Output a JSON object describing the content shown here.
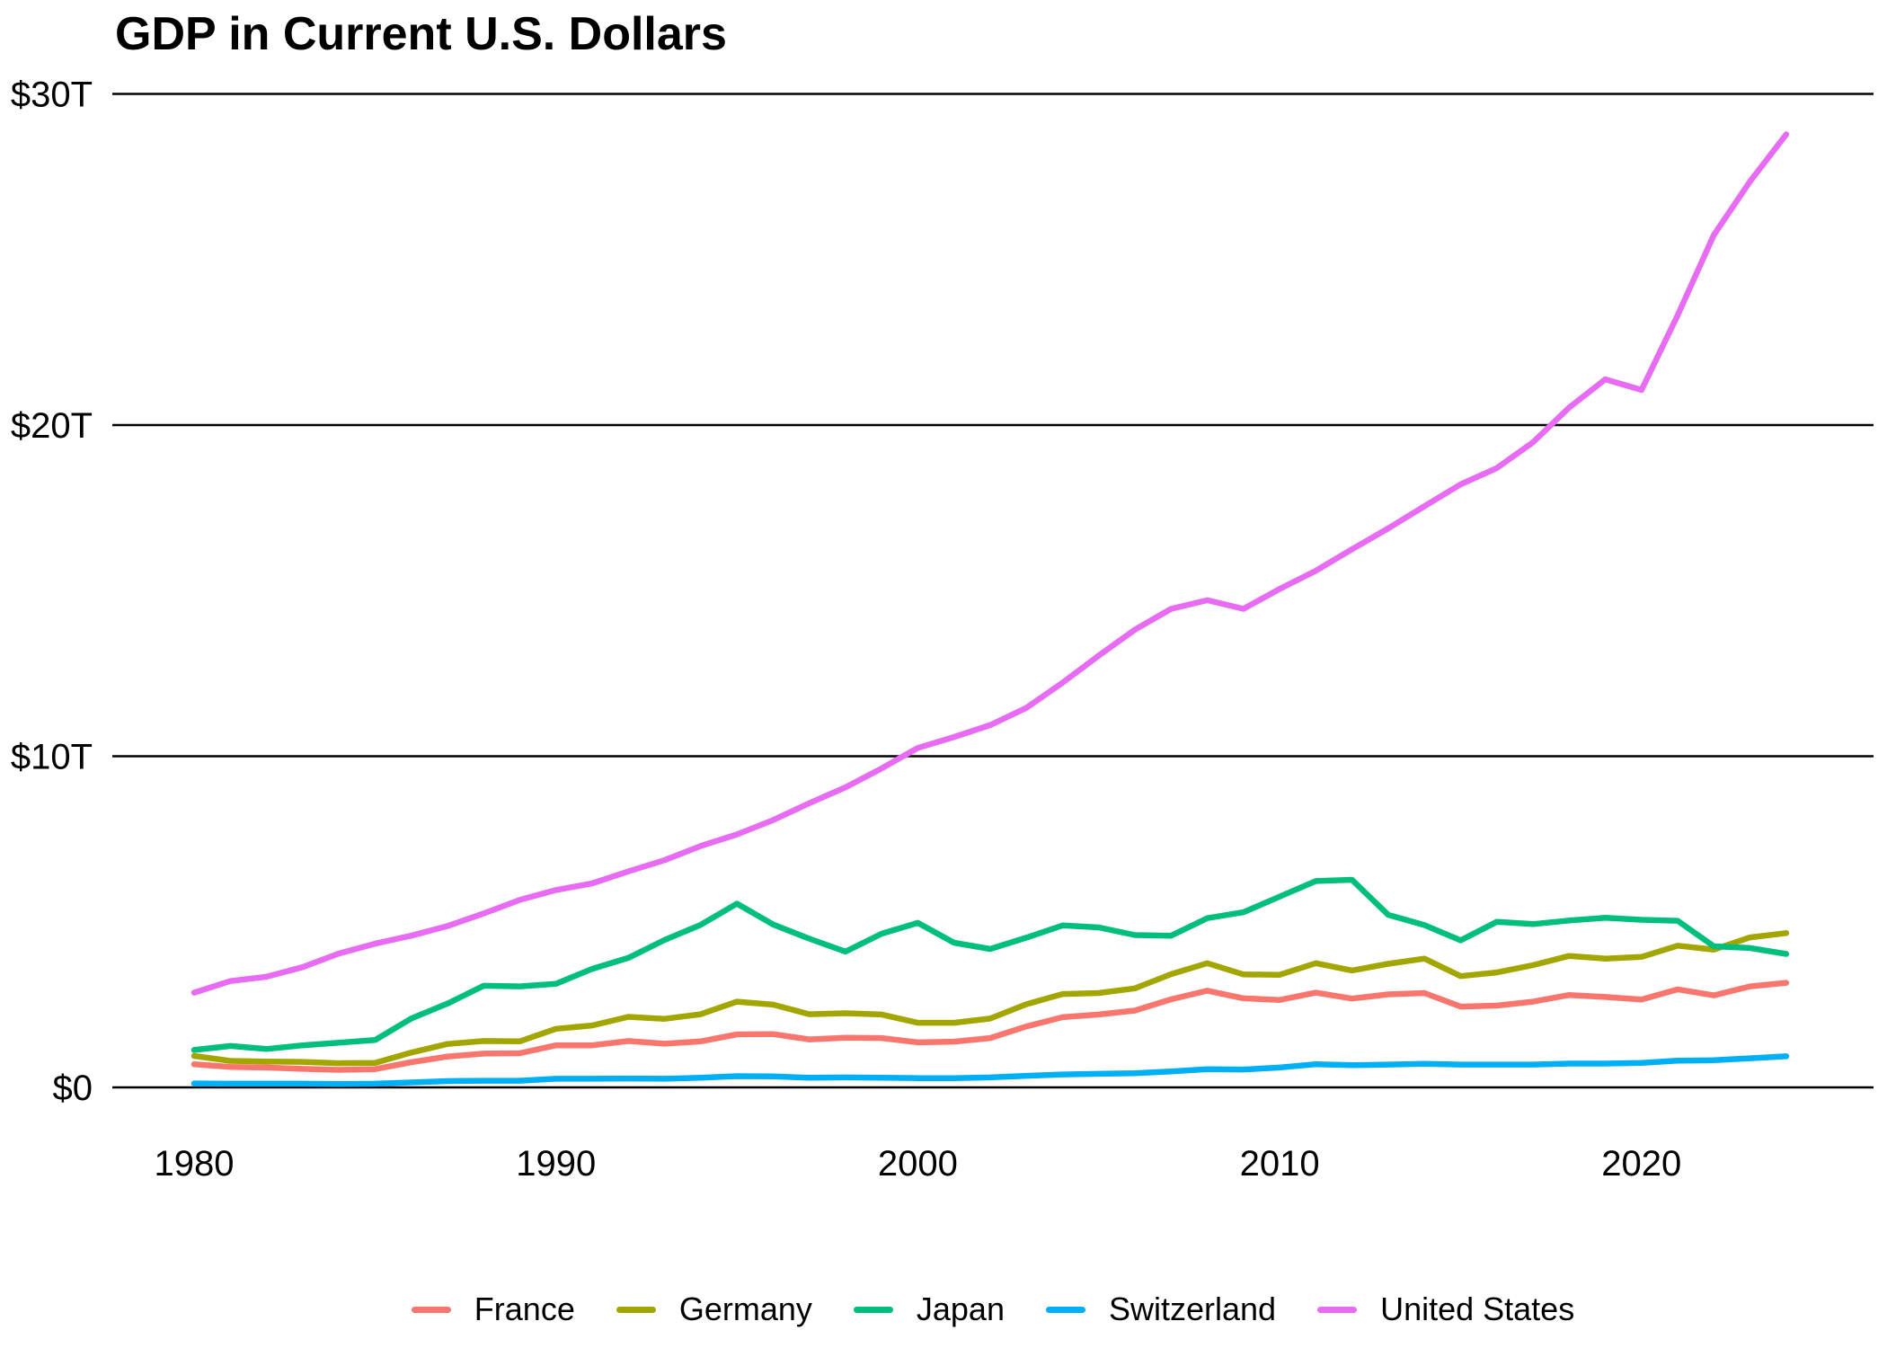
{
  "page": {
    "background_color": "#ffffff",
    "text_color": "#000000",
    "gridline_color": "#000000"
  },
  "chart_data": {
    "type": "line",
    "title": "GDP in Current U.S. Dollars",
    "xlabel": "",
    "ylabel": "",
    "grid": "horizontal",
    "legend_position": "bottom",
    "x": [
      1980,
      1981,
      1982,
      1983,
      1984,
      1985,
      1986,
      1987,
      1988,
      1989,
      1990,
      1991,
      1992,
      1993,
      1994,
      1995,
      1996,
      1997,
      1998,
      1999,
      2000,
      2001,
      2002,
      2003,
      2004,
      2005,
      2006,
      2007,
      2008,
      2009,
      2010,
      2011,
      2012,
      2013,
      2014,
      2015,
      2016,
      2017,
      2018,
      2019,
      2020,
      2021,
      2022,
      2023,
      2024
    ],
    "y_axis": {
      "units": "trillions of U.S. dollars",
      "range": [
        0,
        30.8
      ],
      "ticks": [
        {
          "value": 0,
          "label": "$0"
        },
        {
          "value": 10,
          "label": "$10T"
        },
        {
          "value": 20,
          "label": "$20T"
        },
        {
          "value": 30,
          "label": "$30T"
        }
      ]
    },
    "x_axis": {
      "ticks": [
        {
          "value": 1980,
          "label": "1980"
        },
        {
          "value": 1990,
          "label": "1990"
        },
        {
          "value": 2000,
          "label": "2000"
        },
        {
          "value": 2010,
          "label": "2010"
        },
        {
          "value": 2020,
          "label": "2020"
        }
      ]
    },
    "series": [
      {
        "name": "France",
        "color": "#F8766D",
        "values": [
          0.7,
          0.62,
          0.6,
          0.56,
          0.53,
          0.55,
          0.76,
          0.93,
          1.02,
          1.03,
          1.27,
          1.27,
          1.4,
          1.32,
          1.39,
          1.6,
          1.61,
          1.45,
          1.5,
          1.49,
          1.36,
          1.38,
          1.49,
          1.84,
          2.12,
          2.2,
          2.32,
          2.66,
          2.92,
          2.69,
          2.64,
          2.86,
          2.68,
          2.81,
          2.85,
          2.44,
          2.47,
          2.59,
          2.79,
          2.73,
          2.65,
          2.96,
          2.78,
          3.05,
          3.16
        ]
      },
      {
        "name": "Germany",
        "color": "#A3A500",
        "values": [
          0.95,
          0.8,
          0.78,
          0.77,
          0.73,
          0.74,
          1.05,
          1.31,
          1.4,
          1.39,
          1.77,
          1.87,
          2.13,
          2.07,
          2.21,
          2.59,
          2.5,
          2.21,
          2.24,
          2.2,
          1.95,
          1.95,
          2.08,
          2.51,
          2.82,
          2.85,
          2.99,
          3.42,
          3.75,
          3.41,
          3.4,
          3.75,
          3.53,
          3.73,
          3.89,
          3.36,
          3.47,
          3.69,
          3.97,
          3.89,
          3.94,
          4.28,
          4.16,
          4.53,
          4.66
        ]
      },
      {
        "name": "Japan",
        "color": "#00BF7D",
        "values": [
          1.13,
          1.25,
          1.16,
          1.27,
          1.35,
          1.43,
          2.08,
          2.53,
          3.07,
          3.05,
          3.13,
          3.58,
          3.91,
          4.45,
          4.91,
          5.55,
          4.92,
          4.49,
          4.1,
          4.64,
          4.97,
          4.37,
          4.18,
          4.52,
          4.89,
          4.83,
          4.6,
          4.58,
          5.11,
          5.29,
          5.76,
          6.23,
          6.27,
          5.21,
          4.9,
          4.44,
          5.0,
          4.93,
          5.04,
          5.12,
          5.06,
          5.03,
          4.26,
          4.21,
          4.03
        ]
      },
      {
        "name": "Switzerland",
        "color": "#00B0F6",
        "values": [
          0.12,
          0.11,
          0.11,
          0.11,
          0.1,
          0.11,
          0.15,
          0.19,
          0.2,
          0.2,
          0.26,
          0.26,
          0.27,
          0.26,
          0.29,
          0.34,
          0.33,
          0.29,
          0.3,
          0.29,
          0.28,
          0.28,
          0.3,
          0.35,
          0.39,
          0.41,
          0.43,
          0.48,
          0.55,
          0.54,
          0.6,
          0.7,
          0.67,
          0.69,
          0.71,
          0.69,
          0.69,
          0.69,
          0.72,
          0.72,
          0.74,
          0.81,
          0.82,
          0.88,
          0.94
        ]
      },
      {
        "name": "United States",
        "color": "#E76BF3",
        "values": [
          2.86,
          3.21,
          3.34,
          3.63,
          4.04,
          4.34,
          4.58,
          4.87,
          5.25,
          5.66,
          5.96,
          6.16,
          6.52,
          6.86,
          7.29,
          7.64,
          8.07,
          8.58,
          9.06,
          9.63,
          10.25,
          10.58,
          10.94,
          11.46,
          12.22,
          13.04,
          13.82,
          14.45,
          14.71,
          14.45,
          15.05,
          15.6,
          16.25,
          16.88,
          17.55,
          18.21,
          18.7,
          19.48,
          20.53,
          21.38,
          21.06,
          23.32,
          25.74,
          27.36,
          28.78
        ]
      }
    ]
  }
}
